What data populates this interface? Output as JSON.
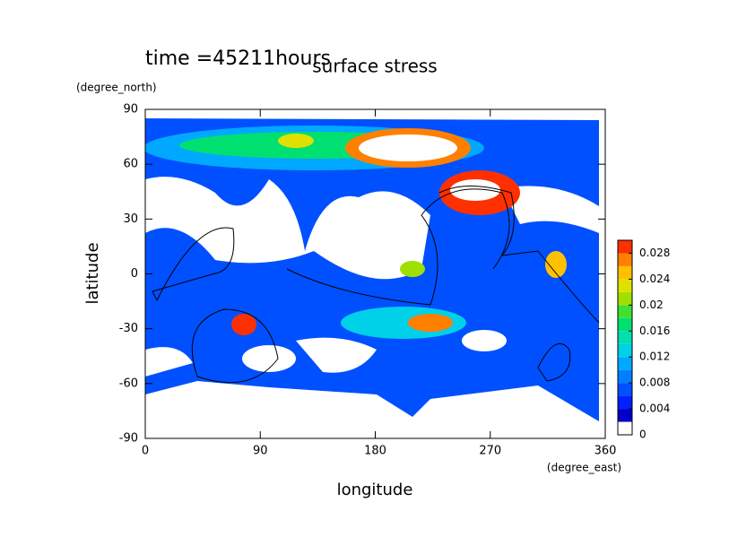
{
  "chart_data": {
    "type": "contour",
    "title": "surface stress",
    "subtitle": "time =45211hours",
    "xlabel": "longitude",
    "ylabel": "latitude",
    "xunit": "(degree_east)",
    "yunit": "(degree_north)",
    "xlim": [
      0,
      360
    ],
    "xticks": [
      0,
      90,
      180,
      270,
      360
    ],
    "ylim": [
      -90,
      90
    ],
    "yticks": [
      -90,
      -60,
      -30,
      0,
      30,
      60,
      90
    ],
    "colorbar": {
      "levels": [
        0,
        0.002,
        0.004,
        0.006,
        0.008,
        0.01,
        0.012,
        0.014,
        0.016,
        0.018,
        0.02,
        0.022,
        0.024,
        0.026,
        0.028,
        0.03
      ],
      "colors": [
        "#ffffff",
        "#0000c8",
        "#0020ff",
        "#0050ff",
        "#0080ff",
        "#00a8ff",
        "#00d0e8",
        "#00e0b0",
        "#00e070",
        "#40e030",
        "#a0e000",
        "#e0e000",
        "#ffc000",
        "#ff8000",
        "#ff3000"
      ],
      "ticks": [
        0,
        0.004,
        0.008,
        0.012,
        0.016,
        0.02,
        0.024,
        0.028
      ]
    }
  }
}
